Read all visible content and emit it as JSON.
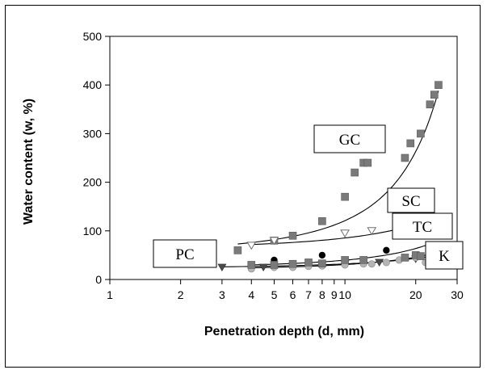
{
  "chart_data": {
    "type": "scatter",
    "xlabel": "Penetration depth (d, mm)",
    "ylabel": "Water content (w, %)",
    "xscale": "log",
    "xlim": [
      1,
      30
    ],
    "ylim": [
      0,
      500
    ],
    "x_ticks": [
      {
        "value": 1,
        "label": "1"
      },
      {
        "value": 2,
        "label": "2"
      },
      {
        "value": 3,
        "label": "3"
      },
      {
        "value": 4,
        "label": "4"
      },
      {
        "value": 5,
        "label": "5"
      },
      {
        "value": 6,
        "label": "6"
      },
      {
        "value": 7,
        "label": "7"
      },
      {
        "value": 8,
        "label": "8"
      },
      {
        "value": 9,
        "label": "9"
      },
      {
        "value": 10,
        "label": "10"
      },
      {
        "value": 20,
        "label": "20"
      },
      {
        "value": 30,
        "label": "30"
      }
    ],
    "y_ticks": [
      0,
      100,
      200,
      300,
      400,
      500
    ],
    "grid": false,
    "series": [
      {
        "name": "GC",
        "marker": "square",
        "color": "#808080",
        "x": [
          3.5,
          5,
          6,
          8,
          10,
          11,
          12,
          12.5,
          18,
          19,
          21,
          23,
          24,
          25
        ],
        "y": [
          60,
          80,
          90,
          120,
          170,
          220,
          240,
          240,
          250,
          280,
          300,
          360,
          380,
          400
        ],
        "fit": {
          "x0": 3.5,
          "y0": 73,
          "x1": 25,
          "y1": 388
        }
      },
      {
        "name": "SC",
        "marker": "triangle-down-open",
        "color": "#808080",
        "x": [
          4,
          5,
          10,
          13,
          17,
          21
        ],
        "y": [
          70,
          80,
          95,
          100,
          110,
          115
        ],
        "fit": {
          "x0": 4,
          "y0": 72,
          "x1": 22,
          "y1": 120
        }
      },
      {
        "name": "TC",
        "marker": "circle-filled",
        "color": "#000000",
        "x": [
          5,
          8,
          15
        ],
        "y": [
          40,
          50,
          60
        ],
        "fit": {
          "x0": 4,
          "y0": 30,
          "x1": 22,
          "y1": 70
        }
      },
      {
        "name": "PC",
        "marker": "triangle-down-filled",
        "color": "#505050",
        "x": [
          3,
          4.5,
          6,
          8,
          10,
          14,
          20
        ],
        "y": [
          25,
          25,
          27,
          30,
          32,
          35,
          42
        ],
        "fit": {
          "x0": 3,
          "y0": 26,
          "x1": 22,
          "y1": 46
        }
      },
      {
        "name": "K",
        "marker": "circle-grey",
        "color": "#a0a0a0",
        "x": [
          4,
          5,
          6,
          7,
          8,
          10,
          12,
          13,
          15,
          17,
          20,
          22
        ],
        "y": [
          22,
          25,
          25,
          27,
          28,
          30,
          32,
          32,
          35,
          40,
          45,
          35
        ],
        "fit": {
          "x0": 4,
          "y0": 24,
          "x1": 22,
          "y1": 50
        }
      }
    ],
    "extra_points": [
      {
        "x": 4,
        "y": 30,
        "marker": "square"
      },
      {
        "x": 5,
        "y": 30,
        "marker": "square"
      },
      {
        "x": 6,
        "y": 32,
        "marker": "square"
      },
      {
        "x": 7,
        "y": 35,
        "marker": "square"
      },
      {
        "x": 8,
        "y": 33,
        "marker": "square"
      },
      {
        "x": 10,
        "y": 40,
        "marker": "square"
      },
      {
        "x": 12,
        "y": 40,
        "marker": "square"
      },
      {
        "x": 18,
        "y": 45,
        "marker": "square"
      },
      {
        "x": 20,
        "y": 50,
        "marker": "square"
      },
      {
        "x": 21,
        "y": 48,
        "marker": "square"
      }
    ],
    "annotations": [
      {
        "text": "GC",
        "series": "GC"
      },
      {
        "text": "SC",
        "series": "SC"
      },
      {
        "text": "TC",
        "series": "TC"
      },
      {
        "text": "PC",
        "series": "PC"
      },
      {
        "text": "K",
        "series": "K"
      }
    ]
  }
}
